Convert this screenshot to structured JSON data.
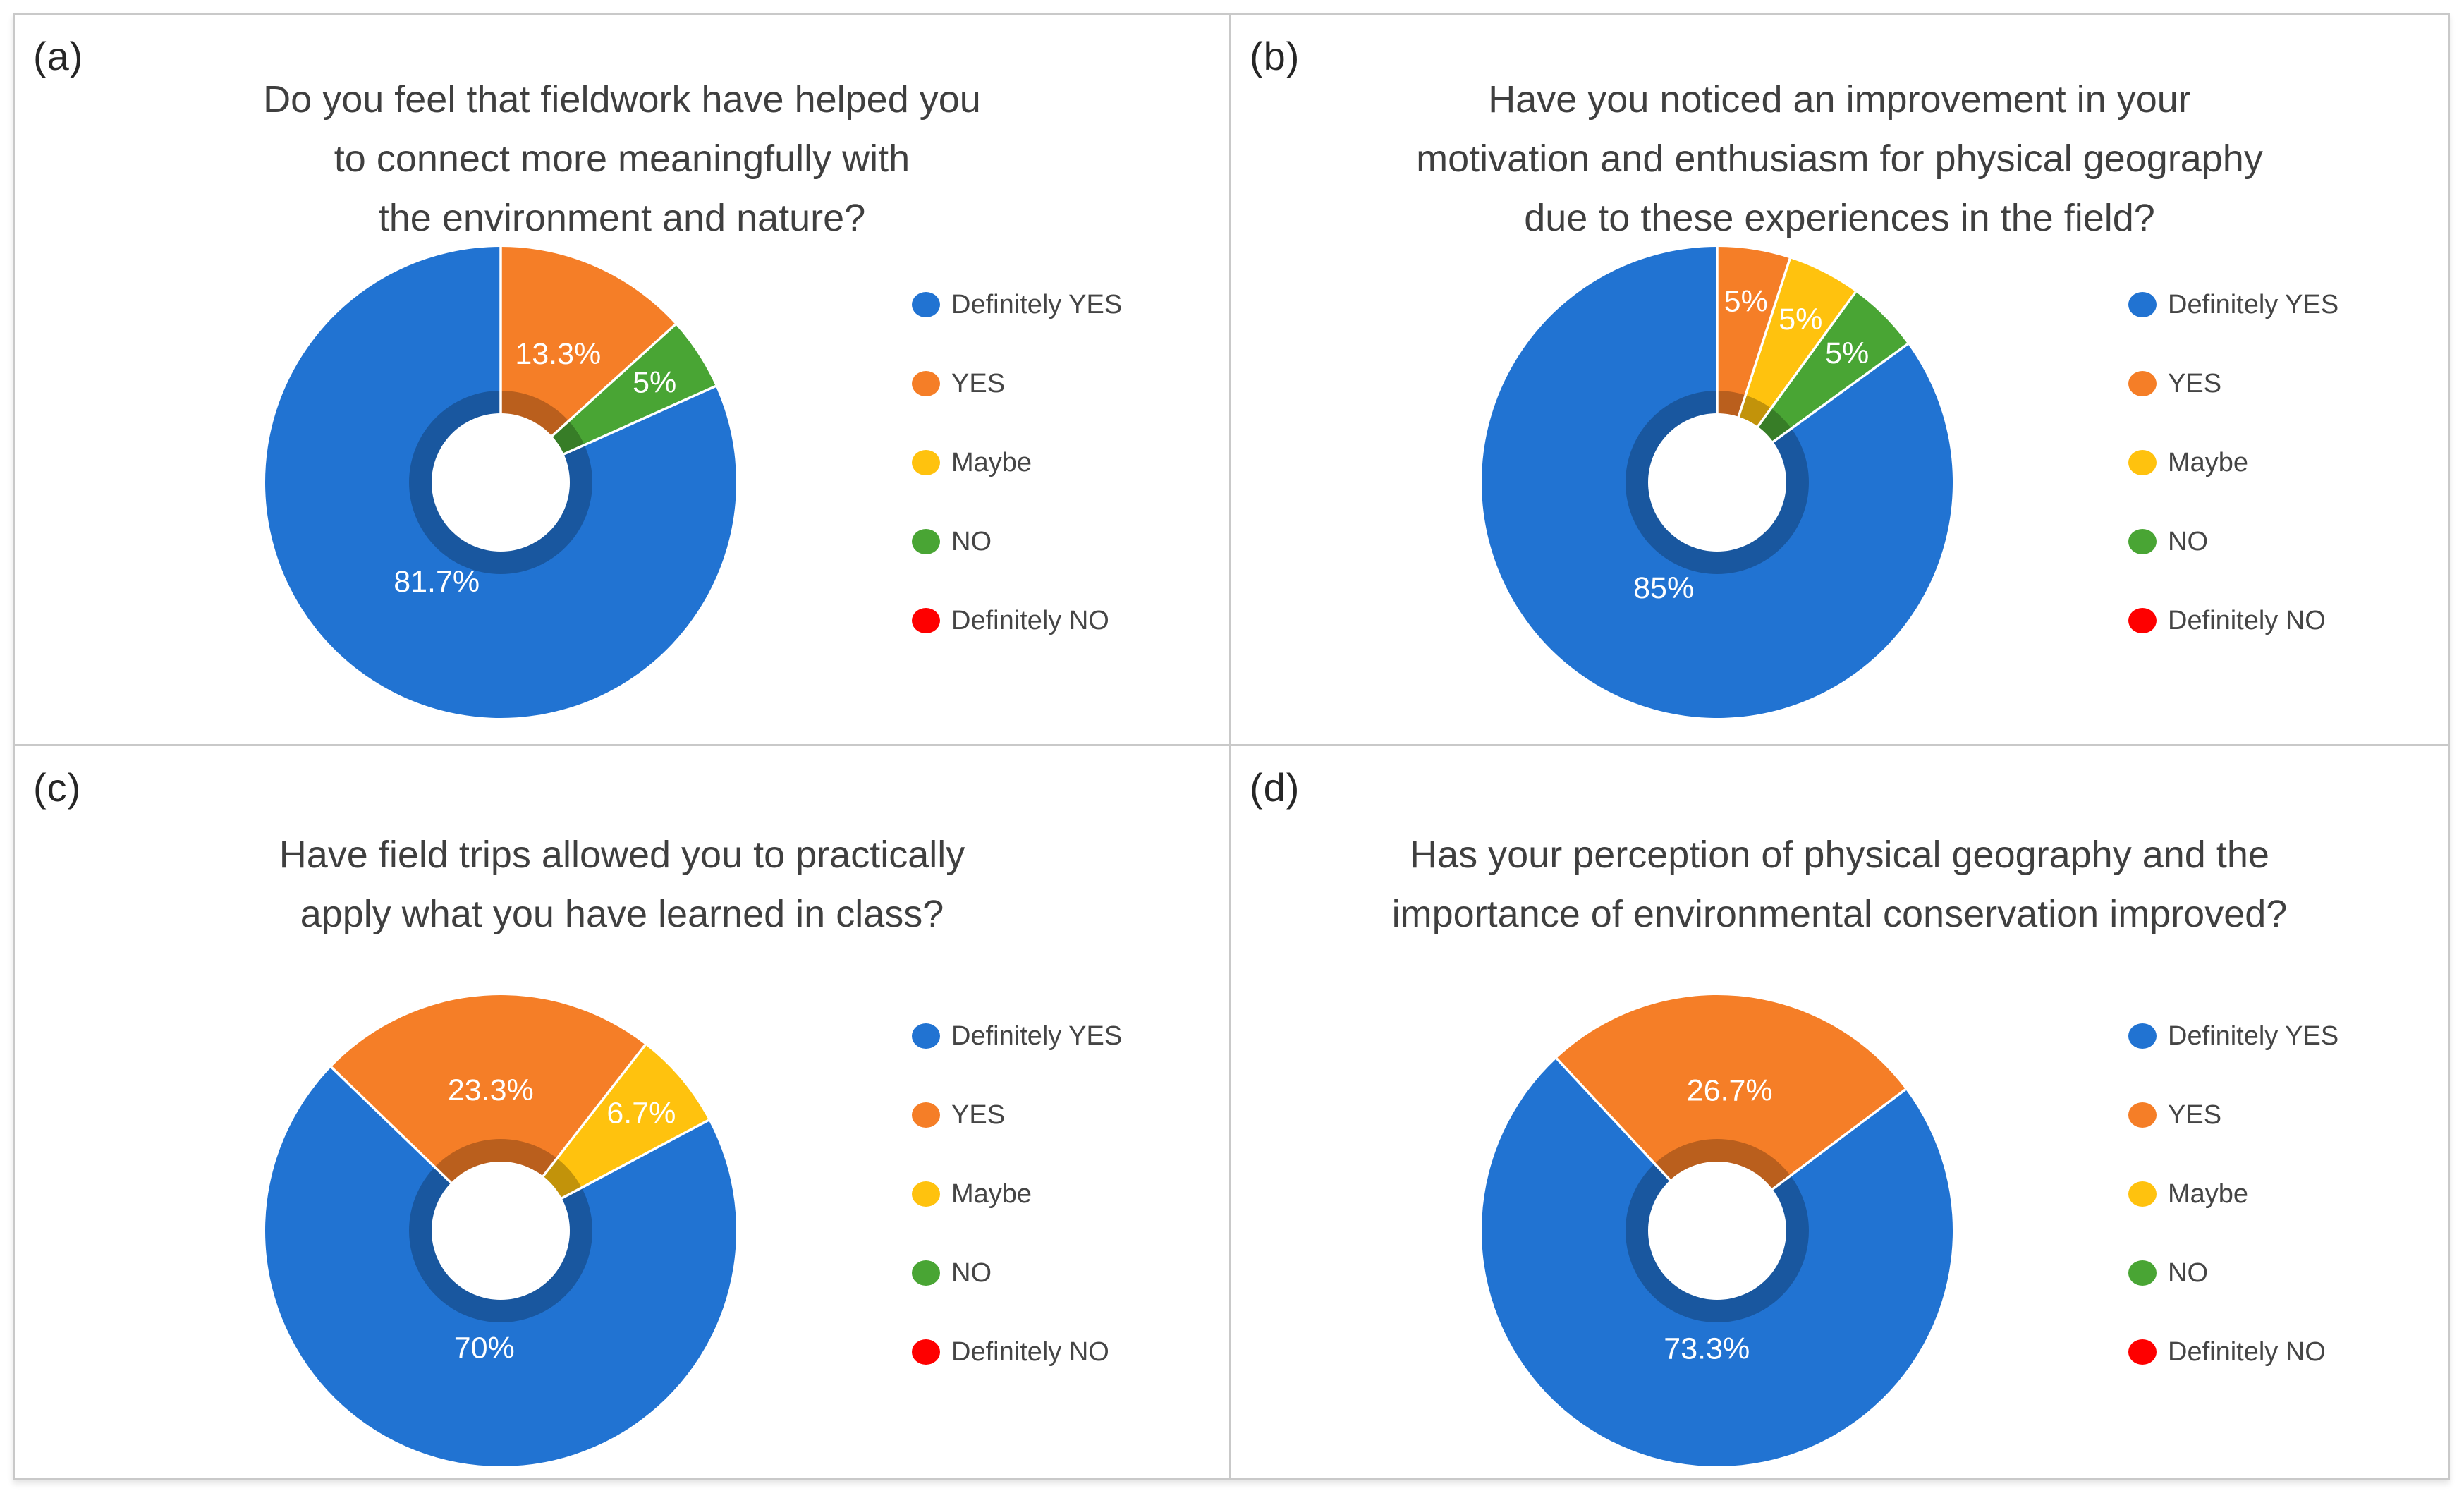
{
  "page": {
    "background": "#ffffff",
    "grid_border_color": "#c9c9c9"
  },
  "palette": {
    "definitely_yes": "#2173D2",
    "yes": "#F57E27",
    "maybe": "#FFC20E",
    "no": "#49A534",
    "definitely_no": "#FE0000"
  },
  "legend": {
    "items": [
      {
        "label": "Definitely YES",
        "key": "definitely_yes"
      },
      {
        "label": "YES",
        "key": "yes"
      },
      {
        "label": "Maybe",
        "key": "maybe"
      },
      {
        "label": "NO",
        "key": "no"
      },
      {
        "label": "Definitely NO",
        "key": "definitely_no"
      }
    ]
  },
  "chart_data": [
    {
      "type": "pie",
      "variant": "donut",
      "panel_label": "(a)",
      "title": "Do you feel that fieldwork have helped you to connect more meaningfully with the environment and nature?",
      "title_lines": [
        "Do you feel that fieldwork have helped you",
        "to connect more meaningfully with",
        "the environment and nature?"
      ],
      "start_angle_deg": 0,
      "legend_position": "right",
      "slices": [
        {
          "category": "YES",
          "key": "yes",
          "value_pct": 13.3,
          "label": "13.3%"
        },
        {
          "category": "NO",
          "key": "no",
          "value_pct": 5,
          "label": "5%"
        },
        {
          "category": "Definitely YES",
          "key": "definitely_yes",
          "value_pct": 81.7,
          "label": "81.7%"
        }
      ]
    },
    {
      "type": "pie",
      "variant": "donut",
      "panel_label": "(b)",
      "title": "Have you noticed an improvement in your motivation and enthusiasm for physical geography due to these experiences in the field?",
      "title_lines": [
        "Have you noticed an improvement in your",
        "motivation and enthusiasm for physical geography",
        "due to these experiences in the field?"
      ],
      "start_angle_deg": 0,
      "legend_position": "right",
      "slices": [
        {
          "category": "YES",
          "key": "yes",
          "value_pct": 5,
          "label": "5%"
        },
        {
          "category": "Maybe",
          "key": "maybe",
          "value_pct": 5,
          "label": "5%"
        },
        {
          "category": "NO",
          "key": "no",
          "value_pct": 5,
          "label": "5%"
        },
        {
          "category": "Definitely YES",
          "key": "definitely_yes",
          "value_pct": 85,
          "label": "85%"
        }
      ]
    },
    {
      "type": "pie",
      "variant": "donut",
      "panel_label": "(c)",
      "title": "Have field trips allowed you to practically apply what you have learned in class?",
      "title_lines": [
        "Have field trips allowed you to practically",
        "apply what you have learned in class?"
      ],
      "start_angle_deg": -46,
      "legend_position": "right",
      "slices": [
        {
          "category": "YES",
          "key": "yes",
          "value_pct": 23.3,
          "label": "23.3%"
        },
        {
          "category": "Maybe",
          "key": "maybe",
          "value_pct": 6.7,
          "label": "6.7%"
        },
        {
          "category": "Definitely YES",
          "key": "definitely_yes",
          "value_pct": 70,
          "label": "70%"
        }
      ]
    },
    {
      "type": "pie",
      "variant": "donut",
      "panel_label": "(d)",
      "title": "Has your perception of physical geography and the importance of environmental conservation improved?",
      "title_lines": [
        "Has your perception of physical geography and the",
        "importance of environmental conservation improved?"
      ],
      "start_angle_deg": -43,
      "legend_position": "right",
      "slices": [
        {
          "category": "YES",
          "key": "yes",
          "value_pct": 26.7,
          "label": "26.7%"
        },
        {
          "category": "Definitely YES",
          "key": "definitely_yes",
          "value_pct": 73.3,
          "label": "73.3%"
        }
      ]
    }
  ]
}
